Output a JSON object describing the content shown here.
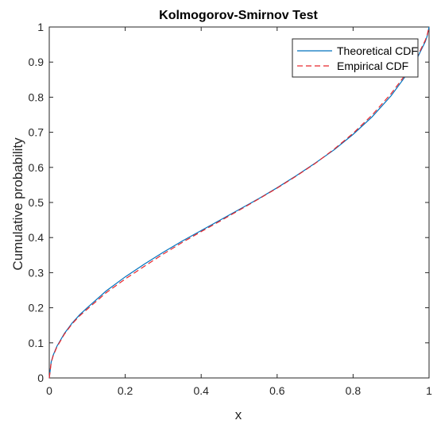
{
  "chart_data": {
    "type": "line",
    "title": "Kolmogorov-Smirnov Test",
    "xlabel": "x",
    "ylabel": "Cumulative probability",
    "xlim": [
      0,
      1
    ],
    "ylim": [
      0,
      1
    ],
    "xticks": [
      "0",
      "0.2",
      "0.4",
      "0.6",
      "0.8",
      "1"
    ],
    "yticks": [
      "0",
      "0.1",
      "0.2",
      "0.3",
      "0.4",
      "0.5",
      "0.6",
      "0.7",
      "0.8",
      "0.9",
      "1"
    ],
    "grid": false,
    "legend_position": "top-right",
    "series": [
      {
        "name": "Theoretical CDF",
        "color": "#0072bd",
        "style": "solid",
        "x": [
          0,
          0.005,
          0.01,
          0.02,
          0.04,
          0.06,
          0.08,
          0.1,
          0.15,
          0.2,
          0.25,
          0.3,
          0.35,
          0.4,
          0.45,
          0.5,
          0.55,
          0.6,
          0.65,
          0.7,
          0.75,
          0.8,
          0.85,
          0.9,
          0.93,
          0.95,
          0.97,
          0.98,
          0.99,
          0.995,
          1
        ],
        "y": [
          0.0,
          0.045,
          0.064,
          0.09,
          0.127,
          0.156,
          0.18,
          0.2,
          0.248,
          0.288,
          0.324,
          0.358,
          0.39,
          0.42,
          0.45,
          0.48,
          0.51,
          0.542,
          0.576,
          0.612,
          0.65,
          0.694,
          0.744,
          0.804,
          0.848,
          0.878,
          0.914,
          0.936,
          0.958,
          0.974,
          1.0
        ]
      },
      {
        "name": "Empirical CDF",
        "color": "#e8262b",
        "style": "dashed",
        "x": [
          0,
          0.005,
          0.01,
          0.02,
          0.04,
          0.06,
          0.08,
          0.1,
          0.15,
          0.2,
          0.25,
          0.3,
          0.35,
          0.4,
          0.45,
          0.5,
          0.55,
          0.6,
          0.65,
          0.7,
          0.75,
          0.8,
          0.85,
          0.9,
          0.93,
          0.95,
          0.97,
          0.98,
          0.99,
          0.995,
          1
        ],
        "y": [
          0.0,
          0.043,
          0.062,
          0.088,
          0.125,
          0.154,
          0.177,
          0.196,
          0.243,
          0.282,
          0.318,
          0.353,
          0.386,
          0.417,
          0.447,
          0.478,
          0.509,
          0.541,
          0.575,
          0.611,
          0.652,
          0.697,
          0.749,
          0.81,
          0.853,
          0.883,
          0.918,
          0.94,
          0.962,
          0.977,
          1.0
        ]
      }
    ]
  }
}
